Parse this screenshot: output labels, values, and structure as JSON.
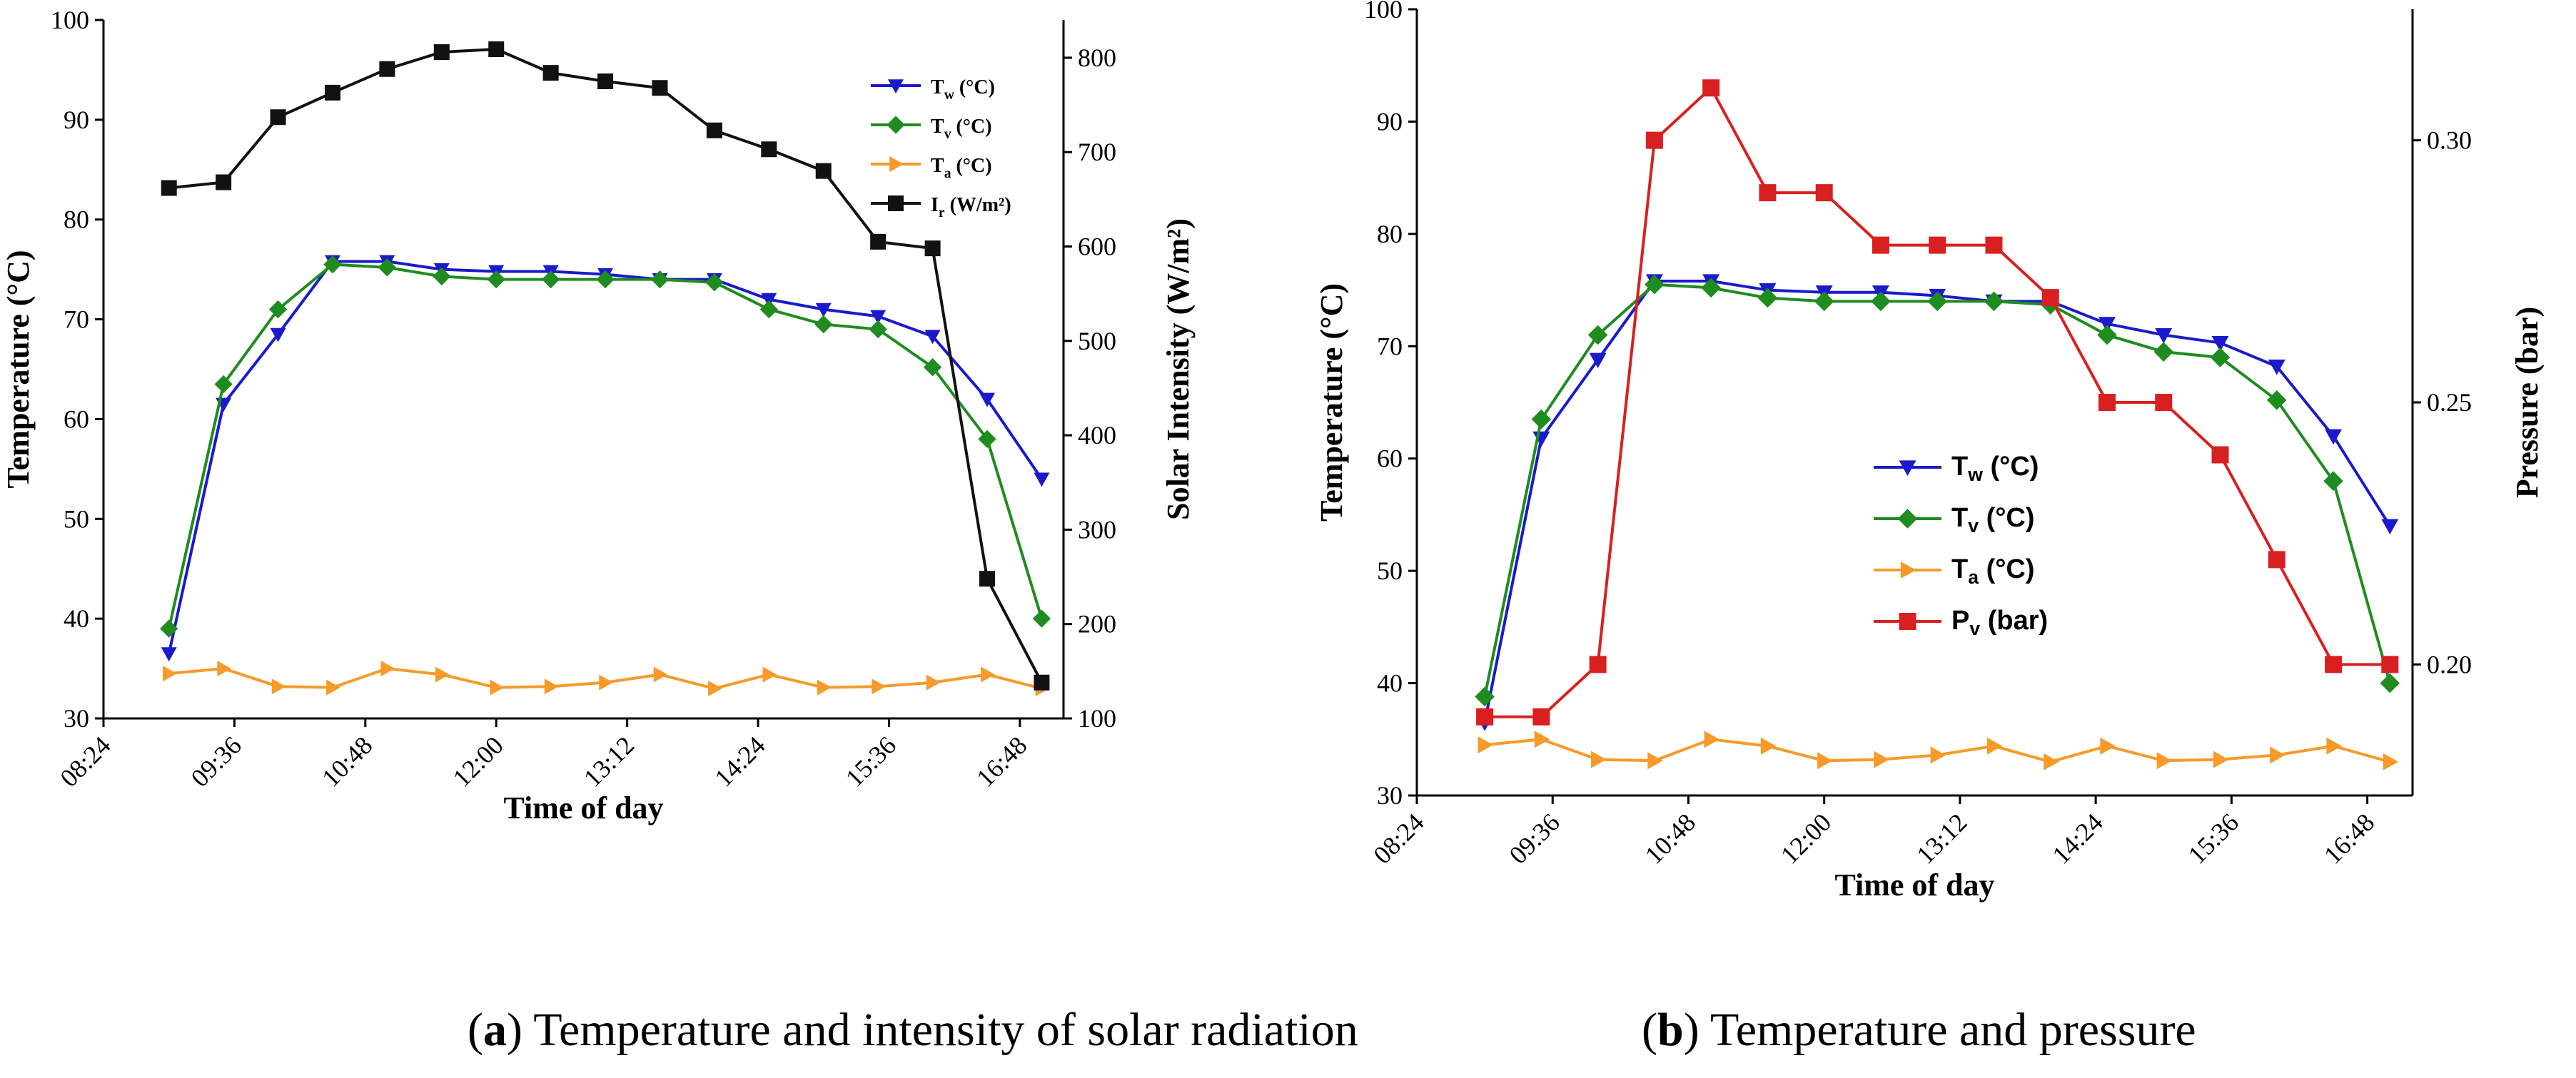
{
  "captions": {
    "a_letter": "a",
    "a_text": " Temperature and intensity of solar radiation",
    "b_letter": "b",
    "b_text": " Temperature and pressure"
  },
  "colors": {
    "tw": "#1a1acc",
    "tv": "#1f8c1f",
    "ta": "#f79a2a",
    "ir": "#111111",
    "pv": "#d92020"
  },
  "chart_data": [
    {
      "id": "a",
      "type": "line",
      "title": "",
      "xlabel": "Time of day",
      "ylabel_left": "Temperature (°C)",
      "ylabel_right": "Solar Intensity (W/m²)",
      "x_ticks": [
        8.4,
        9.6,
        10.8,
        12.0,
        13.2,
        14.4,
        15.6,
        16.8
      ],
      "x_tick_labels": [
        "08:24",
        "09:36",
        "10:48",
        "12:00",
        "13:12",
        "14:24",
        "15:36",
        "16:48"
      ],
      "xlim": [
        8.4,
        17.2
      ],
      "ylim_left": [
        30,
        100
      ],
      "y_ticks_left": [
        30,
        40,
        50,
        60,
        70,
        80,
        90,
        100
      ],
      "ylim_right": [
        100,
        840
      ],
      "y_ticks_right": [
        100,
        200,
        300,
        400,
        500,
        600,
        700,
        800
      ],
      "x": [
        9.0,
        9.5,
        10.0,
        10.5,
        11.0,
        11.5,
        12.0,
        12.5,
        13.0,
        13.5,
        14.0,
        14.5,
        15.0,
        15.5,
        16.0,
        16.5,
        17.0
      ],
      "legend_position": "top-right",
      "series": [
        {
          "key": "tw",
          "name": "T",
          "sub": "w",
          "suffix": " (°C)",
          "axis": "left",
          "marker": "triangle-down",
          "values": [
            36.5,
            61.5,
            68.5,
            75.8,
            75.8,
            75.0,
            74.8,
            74.8,
            74.5,
            74.0,
            74.0,
            72.0,
            71.0,
            70.3,
            68.3,
            62.0,
            54.0
          ]
        },
        {
          "key": "tv",
          "name": "T",
          "sub": "v",
          "suffix": " (°C)",
          "axis": "left",
          "marker": "diamond",
          "values": [
            39.0,
            63.5,
            71.0,
            75.5,
            75.2,
            74.3,
            74.0,
            74.0,
            74.0,
            74.0,
            73.7,
            71.0,
            69.5,
            69.0,
            65.2,
            58.0,
            40.0
          ]
        },
        {
          "key": "ta",
          "name": "T",
          "sub": "a",
          "suffix": " (°C)",
          "axis": "left",
          "marker": "triangle-right",
          "values": [
            34.5,
            35.0,
            33.2,
            33.1,
            35.0,
            34.4,
            33.1,
            33.2,
            33.6,
            34.4,
            33.0,
            34.4,
            33.1,
            33.2,
            33.6,
            34.4,
            33.0
          ]
        },
        {
          "key": "ir",
          "name": "I",
          "sub": "r",
          "suffix": " (W/m²)",
          "axis": "right",
          "marker": "square",
          "values": [
            662,
            668,
            737,
            763,
            788,
            806,
            809,
            784,
            775,
            768,
            723,
            703,
            680,
            605,
            598,
            248,
            138
          ]
        }
      ]
    },
    {
      "id": "b",
      "type": "line",
      "title": "",
      "xlabel": "Time of day",
      "ylabel_left": "Temperature (°C)",
      "ylabel_right": "Pressure (bar)",
      "x_ticks": [
        8.4,
        9.6,
        10.8,
        12.0,
        13.2,
        14.4,
        15.6,
        16.8
      ],
      "x_tick_labels": [
        "08:24",
        "09:36",
        "10:48",
        "12:00",
        "13:12",
        "14:24",
        "15:36",
        "16:48"
      ],
      "xlim": [
        8.4,
        17.2
      ],
      "ylim_left": [
        30,
        100
      ],
      "y_ticks_left": [
        30,
        40,
        50,
        60,
        70,
        80,
        90,
        100
      ],
      "ylim_right": [
        0.175,
        0.325
      ],
      "y_ticks_right": [
        0.2,
        0.25,
        0.3
      ],
      "y_tick_labels_right": [
        "0.20",
        "0.25",
        "0.30"
      ],
      "x": [
        9.0,
        9.5,
        10.0,
        10.5,
        11.0,
        11.5,
        12.0,
        12.5,
        13.0,
        13.5,
        14.0,
        14.5,
        15.0,
        15.5,
        16.0,
        16.5,
        17.0
      ],
      "legend_position": "center-left",
      "series": [
        {
          "key": "tw",
          "name": "T",
          "sub": "w",
          "suffix": " (°C)",
          "axis": "left",
          "marker": "triangle-down",
          "values": [
            36.5,
            61.8,
            68.8,
            75.8,
            75.8,
            75.0,
            74.8,
            74.8,
            74.5,
            74.0,
            74.0,
            72.0,
            71.0,
            70.3,
            68.2,
            62.0,
            54.0
          ]
        },
        {
          "key": "tv",
          "name": "T",
          "sub": "v",
          "suffix": " (°C)",
          "axis": "left",
          "marker": "diamond",
          "values": [
            38.8,
            63.5,
            71.0,
            75.5,
            75.2,
            74.3,
            74.0,
            74.0,
            74.0,
            74.0,
            73.7,
            71.0,
            69.5,
            69.0,
            65.2,
            58.0,
            40.0
          ]
        },
        {
          "key": "ta",
          "name": "T",
          "sub": "a",
          "suffix": " (°C)",
          "axis": "left",
          "marker": "triangle-right",
          "values": [
            34.5,
            35.0,
            33.2,
            33.1,
            35.0,
            34.4,
            33.1,
            33.2,
            33.6,
            34.4,
            33.0,
            34.4,
            33.1,
            33.2,
            33.6,
            34.4,
            33.0
          ]
        },
        {
          "key": "pv",
          "name": "P",
          "sub": "v",
          "suffix": " (bar)",
          "axis": "right",
          "marker": "square",
          "values": [
            0.19,
            0.19,
            0.2,
            0.3,
            0.31,
            0.29,
            0.29,
            0.28,
            0.28,
            0.28,
            0.27,
            0.25,
            0.25,
            0.24,
            0.22,
            0.2,
            0.2
          ]
        }
      ]
    }
  ]
}
